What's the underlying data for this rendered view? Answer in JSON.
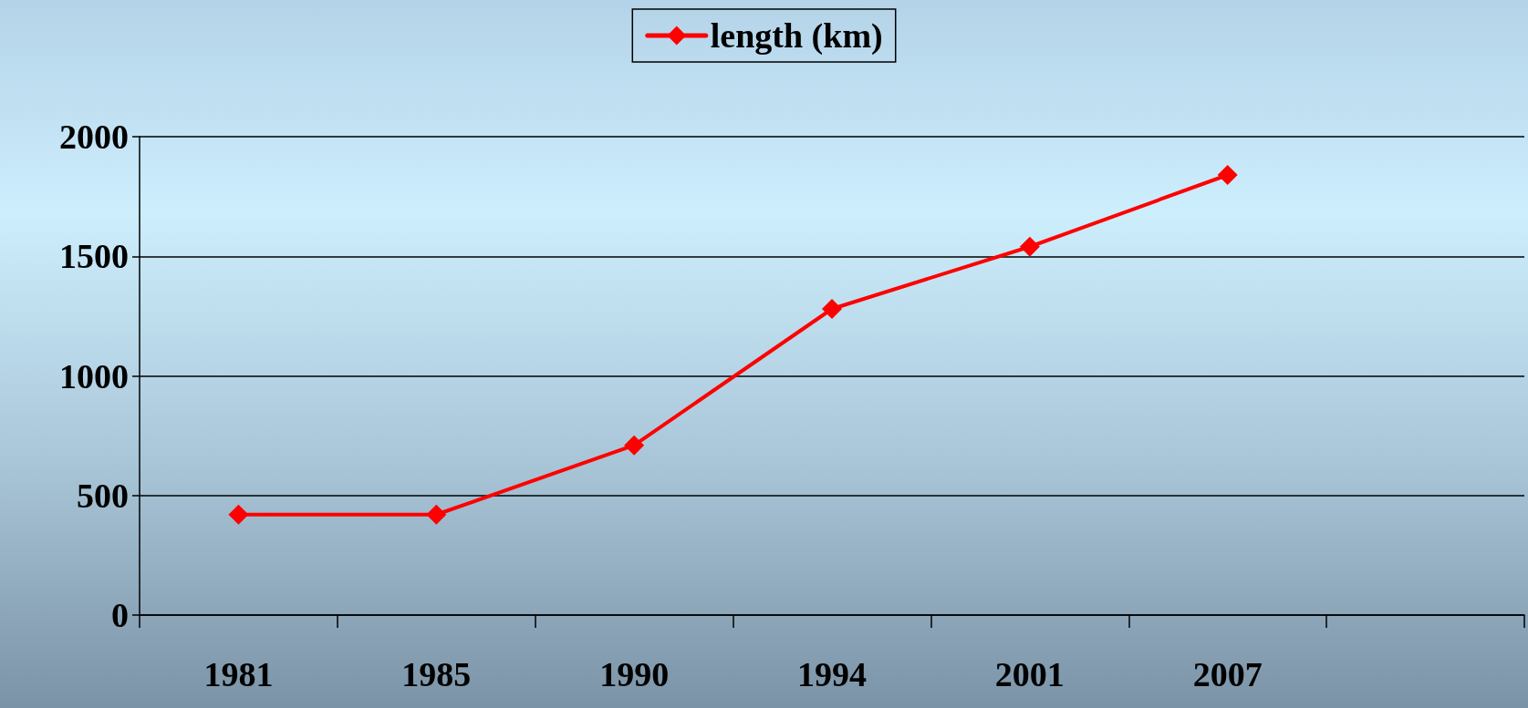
{
  "chart_data": {
    "type": "line",
    "categories": [
      "1981",
      "1985",
      "1990",
      "1994",
      "2001",
      "2007",
      null
    ],
    "series": [
      {
        "name": "length (km)",
        "color": "#ff0000",
        "values": [
          420,
          420,
          710,
          1280,
          1540,
          1840,
          null
        ]
      }
    ],
    "ylim": [
      0,
      2000
    ],
    "yticks": [
      0,
      500,
      1000,
      1500,
      2000
    ],
    "grid": "y",
    "legend": "top",
    "marker": "diamond",
    "line_style": "solid"
  }
}
